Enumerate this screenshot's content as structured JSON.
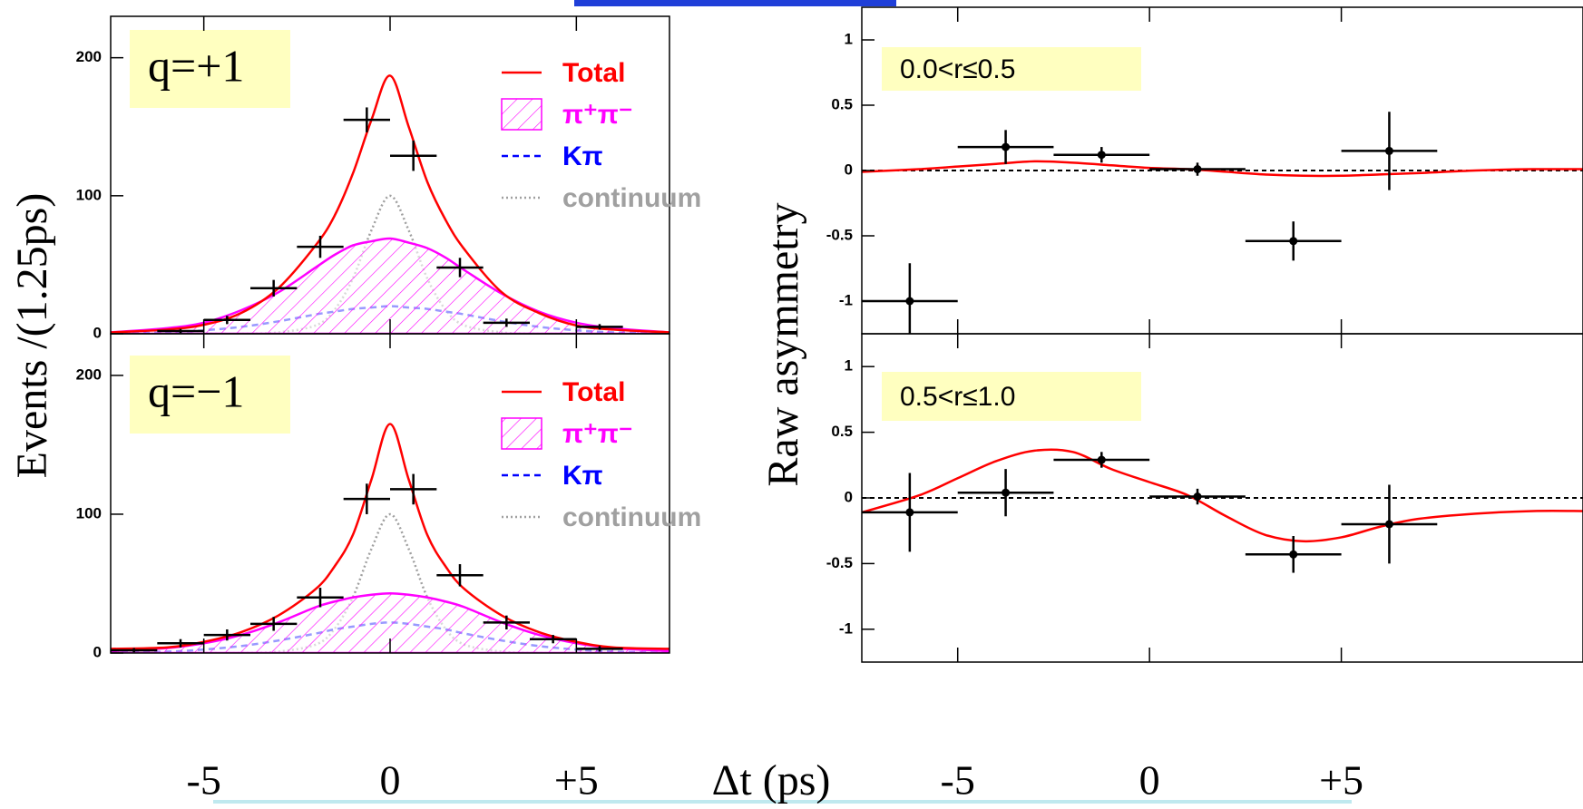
{
  "chart_data": [
    {
      "type": "errorbar",
      "annotation": "q=+1",
      "ylabel": "Events /(1.25ps)",
      "xlim": [
        -7.5,
        7.5
      ],
      "ylim": [
        0,
        230
      ],
      "xticks": [
        -5,
        0,
        5
      ],
      "yticks": [
        0,
        100,
        200
      ],
      "legend": "upper right",
      "points": {
        "x": [
          -5.625,
          -4.375,
          -3.125,
          -1.875,
          -0.625,
          0.625,
          1.875,
          3.125,
          5.625
        ],
        "values": [
          2,
          10,
          33,
          63,
          155,
          129,
          48,
          8,
          5
        ],
        "errors": [
          1.5,
          3,
          6,
          8,
          9,
          11,
          7,
          3,
          2
        ],
        "x_halfwidth": 0.625,
        "markers": false,
        "color": "#000000"
      },
      "x": [
        -7.5,
        -6,
        -5,
        -4,
        -3,
        -2,
        -1.5,
        -1,
        -0.5,
        0,
        0.5,
        1,
        1.5,
        2,
        3,
        4,
        5,
        6,
        7.5
      ],
      "series": [
        {
          "name": "Total",
          "color": "#ff0000",
          "style": "solid",
          "values": [
            1,
            3,
            6.5,
            15,
            33,
            64,
            85,
            116,
            155,
            187,
            150,
            110,
            82,
            61,
            30,
            15,
            6,
            3,
            1
          ]
        },
        {
          "name": "π⁺π⁻",
          "color": "#ff00ff",
          "style": "hatch",
          "values": [
            1,
            4,
            8,
            17,
            30,
            48,
            57,
            64,
            67,
            69,
            66,
            62,
            55,
            46,
            29,
            16,
            8,
            4,
            1
          ]
        },
        {
          "name": "Kπ",
          "color": "#0000ff",
          "style": "dashed",
          "values": [
            0.3,
            1,
            2.5,
            5,
            9,
            14,
            16,
            18,
            19,
            20,
            19,
            18,
            16,
            14,
            9,
            5,
            2.5,
            1,
            0.3
          ]
        },
        {
          "name": "continuum",
          "color": "#a0a0a0",
          "style": "dotted",
          "values": [
            0,
            0,
            0,
            0,
            1,
            6,
            17,
            40,
            75,
            100,
            75,
            40,
            17,
            6,
            1,
            0,
            0,
            0,
            0
          ]
        }
      ]
    },
    {
      "type": "errorbar",
      "annotation": "q=−1",
      "xlabel": "Δt (ps)",
      "xlim": [
        -7.5,
        7.5
      ],
      "ylim": [
        0,
        230
      ],
      "xticks": [
        -5,
        0,
        {
          "value": 5,
          "label": "+5"
        }
      ],
      "yticks": [
        0,
        100,
        200
      ],
      "legend": "upper right",
      "points": {
        "x": [
          -6.875,
          -5.625,
          -4.375,
          -3.125,
          -1.875,
          -0.625,
          0.625,
          1.875,
          3.125,
          4.375,
          5.625
        ],
        "values": [
          2,
          7,
          13,
          21,
          40,
          111,
          118,
          56,
          22,
          10,
          3
        ],
        "errors": [
          1.5,
          3,
          4,
          5,
          7,
          11,
          11,
          8,
          5,
          3,
          2
        ],
        "x_halfwidth": 0.625,
        "markers": false,
        "color": "#000000"
      },
      "x": [
        -7.5,
        -6,
        -5,
        -4,
        -3,
        -2,
        -1.5,
        -1,
        -0.5,
        0,
        0.5,
        1,
        1.5,
        2,
        3,
        4,
        5,
        6,
        7.5
      ],
      "series": [
        {
          "name": "Total",
          "color": "#ff0000",
          "style": "solid",
          "values": [
            3,
            4,
            8,
            15,
            27,
            46,
            62,
            85,
            125,
            165,
            125,
            85,
            62,
            46,
            27,
            15,
            8,
            4,
            3
          ]
        },
        {
          "name": "π⁺π⁻",
          "color": "#ff00ff",
          "style": "hatch",
          "values": [
            1.5,
            3.5,
            7,
            13,
            22,
            33,
            37,
            40,
            42,
            43,
            42,
            40,
            37,
            33,
            22,
            13,
            7,
            3.5,
            1.5
          ]
        },
        {
          "name": "Kπ",
          "color": "#0000ff",
          "style": "dashed",
          "values": [
            0.3,
            1,
            2.5,
            5,
            9,
            14,
            17,
            19,
            21,
            22,
            21,
            19,
            17,
            14,
            9,
            5,
            2.5,
            1,
            0.3
          ]
        },
        {
          "name": "continuum",
          "color": "#a0a0a0",
          "style": "dotted",
          "values": [
            0,
            0,
            0,
            0,
            1,
            6,
            17,
            40,
            75,
            100,
            75,
            40,
            17,
            6,
            1,
            0,
            0,
            0,
            0
          ]
        }
      ]
    },
    {
      "type": "errorbar",
      "annotation": "0.0<r≤0.5",
      "ylabel": "Raw asymmetry",
      "xlim": [
        -7.5,
        11.3
      ],
      "ylim": [
        -1.25,
        1.25
      ],
      "xticks": [
        -5,
        0,
        5
      ],
      "yticks": [
        -1,
        -0.5,
        0,
        0.5,
        1
      ],
      "reference_line": 0,
      "points": {
        "x": [
          -6.25,
          -3.75,
          -1.25,
          1.25,
          3.75,
          6.25
        ],
        "values": [
          -1.0,
          0.18,
          0.12,
          0.01,
          -0.54,
          0.15
        ],
        "errors": [
          0.29,
          0.13,
          0.06,
          0.05,
          0.15,
          0.3
        ],
        "x_halfwidth": 1.25,
        "markers": true,
        "color": "#000000"
      },
      "x": [
        -7.5,
        -6,
        -5,
        -4,
        -3,
        -2,
        -1,
        0,
        1,
        2,
        3,
        4,
        5,
        6,
        7,
        8.5,
        10,
        11.3
      ],
      "series": [
        {
          "color": "#ff0000",
          "style": "solid",
          "values": [
            -0.01,
            0.01,
            0.03,
            0.05,
            0.07,
            0.06,
            0.04,
            0.02,
            0.01,
            -0.01,
            -0.03,
            -0.04,
            -0.04,
            -0.03,
            -0.02,
            0,
            0.01,
            0.01
          ]
        }
      ]
    },
    {
      "type": "errorbar",
      "annotation": "0.5<r≤1.0",
      "xlim": [
        -7.5,
        11.3
      ],
      "ylim": [
        -1.25,
        1.25
      ],
      "xticks": [
        -5,
        0,
        {
          "value": 5,
          "label": "+5"
        }
      ],
      "yticks": [
        -1,
        -0.5,
        0,
        0.5,
        1
      ],
      "reference_line": 0,
      "points": {
        "x": [
          -6.25,
          -3.75,
          -1.25,
          1.25,
          3.75,
          6.25
        ],
        "values": [
          -0.11,
          0.04,
          0.29,
          0.01,
          -0.43,
          -0.2
        ],
        "errors": [
          0.3,
          0.18,
          0.06,
          0.06,
          0.14,
          0.3
        ],
        "x_halfwidth": 1.25,
        "markers": true,
        "color": "#000000"
      },
      "x": [
        -7.5,
        -6,
        -5,
        -4,
        -3,
        -2,
        -1,
        0,
        1,
        2,
        3,
        4,
        5,
        6,
        7,
        8.5,
        10,
        11.3
      ],
      "series": [
        {
          "color": "#ff0000",
          "style": "solid",
          "values": [
            -0.11,
            0.02,
            0.15,
            0.28,
            0.36,
            0.35,
            0.22,
            0.12,
            0.02,
            -0.14,
            -0.28,
            -0.33,
            -0.3,
            -0.22,
            -0.16,
            -0.12,
            -0.1,
            -0.1
          ]
        }
      ]
    }
  ]
}
